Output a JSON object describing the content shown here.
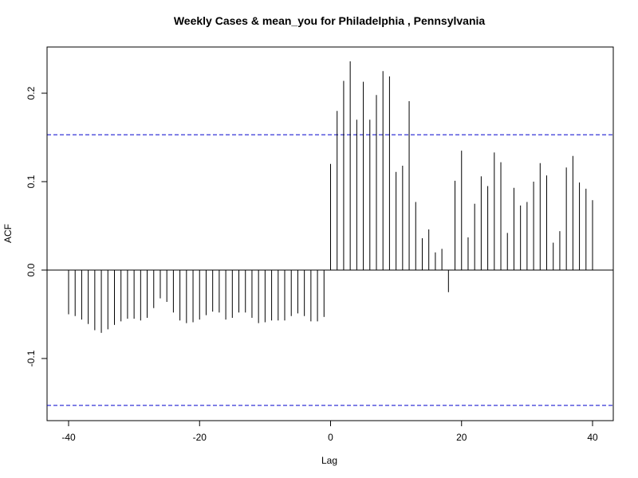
{
  "chart_data": {
    "type": "bar",
    "title": "Weekly Cases & mean_you for Philadelphia , Pennsylvania",
    "xlabel": "Lag",
    "ylabel": "ACF",
    "xlim": [
      -40,
      40
    ],
    "ylim": [
      -0.16,
      0.25
    ],
    "x_ticks": [
      -40,
      -20,
      0,
      20,
      40
    ],
    "y_ticks": [
      -0.1,
      0.0,
      0.1,
      0.2
    ],
    "y_tick_labels": [
      "-0.1",
      "0.0",
      "0.1",
      "0.2"
    ],
    "confidence_limit": 0.153,
    "confidence_color": "#0000cc",
    "grid": false,
    "lags": [
      -40,
      -39,
      -38,
      -37,
      -36,
      -35,
      -34,
      -33,
      -32,
      -31,
      -30,
      -29,
      -28,
      -27,
      -26,
      -25,
      -24,
      -23,
      -22,
      -21,
      -20,
      -19,
      -18,
      -17,
      -16,
      -15,
      -14,
      -13,
      -12,
      -11,
      -10,
      -9,
      -8,
      -7,
      -6,
      -5,
      -4,
      -3,
      -2,
      -1,
      0,
      1,
      2,
      3,
      4,
      5,
      6,
      7,
      8,
      9,
      10,
      11,
      12,
      13,
      14,
      15,
      16,
      17,
      18,
      19,
      20,
      21,
      22,
      23,
      24,
      25,
      26,
      27,
      28,
      29,
      30,
      31,
      32,
      33,
      34,
      35,
      36,
      37,
      38,
      39,
      40
    ],
    "values": [
      -0.05,
      -0.052,
      -0.056,
      -0.061,
      -0.068,
      -0.071,
      -0.067,
      -0.062,
      -0.058,
      -0.055,
      -0.055,
      -0.057,
      -0.054,
      -0.043,
      -0.032,
      -0.036,
      -0.048,
      -0.057,
      -0.06,
      -0.059,
      -0.056,
      -0.051,
      -0.047,
      -0.048,
      -0.056,
      -0.054,
      -0.048,
      -0.048,
      -0.054,
      -0.06,
      -0.059,
      -0.057,
      -0.057,
      -0.057,
      -0.052,
      -0.049,
      -0.052,
      -0.058,
      -0.058,
      -0.053,
      0.12,
      0.18,
      0.214,
      0.236,
      0.17,
      0.213,
      0.17,
      0.198,
      0.225,
      0.219,
      0.111,
      0.118,
      0.191,
      0.077,
      0.036,
      0.046,
      0.02,
      0.024,
      -0.025,
      0.101,
      0.135,
      0.037,
      0.075,
      0.106,
      0.095,
      0.133,
      0.122,
      0.042,
      0.093,
      0.073,
      0.077,
      0.1,
      0.121,
      0.107,
      0.031,
      0.044,
      0.116,
      0.129,
      0.099,
      0.092,
      0.079
    ]
  }
}
